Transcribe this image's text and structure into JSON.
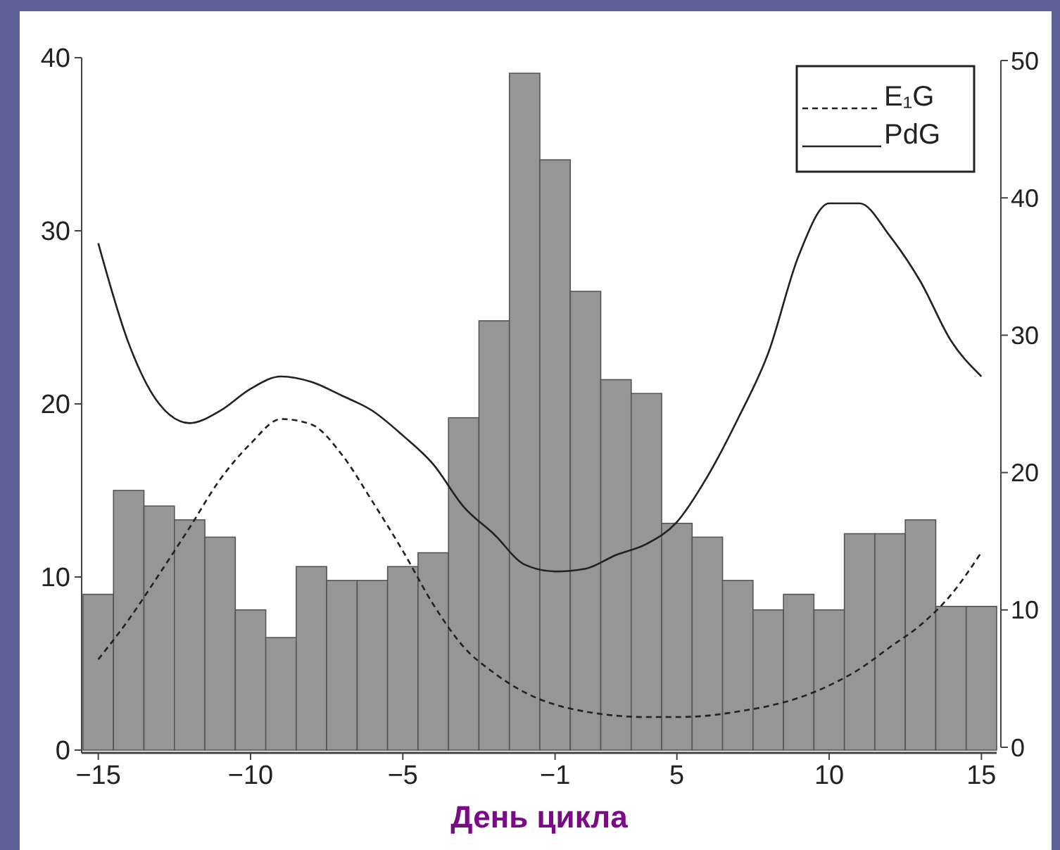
{
  "chart_data": {
    "type": "bar",
    "xlabel": "День цикла",
    "legend": "top right",
    "color": "#969696",
    "categories": [
      "−15",
      null,
      null,
      null,
      null,
      "−10",
      null,
      null,
      null,
      null,
      "−5",
      null,
      null,
      null,
      null,
      "−1",
      null,
      null,
      null,
      "5",
      null,
      null,
      null,
      null,
      "10",
      null,
      null,
      null,
      null,
      "15"
    ],
    "values": [
      9.0,
      15.0,
      14.1,
      13.3,
      12.3,
      8.1,
      6.5,
      10.6,
      9.8,
      9.8,
      10.6,
      11.4,
      19.2,
      24.8,
      39.1,
      34.1,
      26.5,
      21.4,
      20.6,
      13.1,
      12.3,
      9.8,
      8.1,
      9.0,
      8.1,
      12.5,
      12.5,
      13.3,
      8.3,
      8.3
    ],
    "ylim": [
      0,
      40
    ],
    "yticks": [
      0,
      10,
      20,
      30,
      40
    ],
    "y2lim": [
      0,
      50
    ],
    "y2ticks": [
      0,
      10,
      20,
      30,
      40,
      50
    ],
    "series": [
      {
        "type": "line",
        "name": "E₁G",
        "color": "#222222",
        "line_style": "dashed",
        "axis": "y2",
        "values": [
          6.4,
          9.3,
          12.6,
          16.0,
          19.5,
          22.1,
          23.9,
          23.5,
          21.3,
          17.9,
          14.3,
          10.4,
          7.3,
          5.4,
          4.0,
          3.1,
          2.6,
          2.3,
          2.2,
          2.2,
          2.3,
          2.6,
          3.0,
          3.6,
          4.5,
          5.7,
          7.3,
          8.9,
          11.1,
          14.2
        ]
      },
      {
        "type": "line",
        "name": "PdG",
        "color": "#222222",
        "line_style": "solid",
        "axis": "y2",
        "values": [
          36.7,
          29.4,
          25.0,
          23.6,
          24.5,
          26.1,
          27.0,
          26.6,
          25.6,
          24.5,
          22.7,
          20.6,
          17.5,
          15.5,
          13.3,
          12.8,
          13.0,
          14.0,
          14.8,
          16.4,
          19.7,
          23.9,
          28.7,
          35.8,
          39.6,
          39.6,
          37.2,
          33.9,
          29.6,
          27.0
        ]
      }
    ]
  }
}
